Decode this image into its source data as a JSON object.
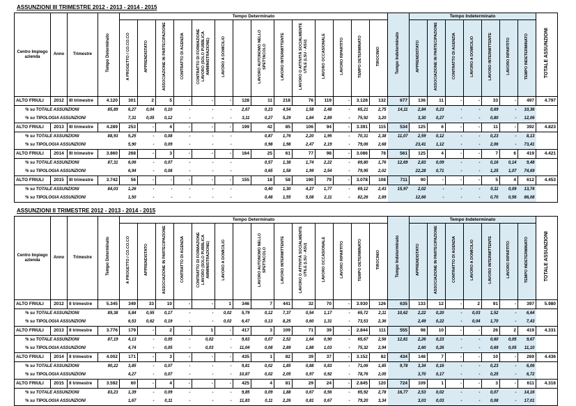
{
  "columns": {
    "id": [
      "Centro Impiego azienda",
      "Anno",
      "Trimestre"
    ],
    "tempo_det_total": "Tempo Determinato",
    "det_group": "Tempo Determinato",
    "det": [
      "A PROGETTO / CO.CO.CO",
      "APPRENDISTATO",
      "ASSOCIAZIONE IN PARTECIPAZIONE",
      "CONTRATTO DI AGENZIA",
      "CONTRATTO DI FORMAZIONE LAVORO (SOLO PUBBLICA AMMINISTRAZIONE)",
      "LAVORO A DOMICILIO",
      "",
      "LAVORO AUTONOMO NELLO SPETTACOLO",
      "LAVORO INTERMITTENTE",
      "LAVORO O ATTIVITÀ SOCIALMENTE UTILE (LSU - ASU)",
      "LAVORO OCCASIONALE",
      "LAVORO RIPARTITO",
      "TEMPO DETERMINATO",
      "TIROCINIO"
    ],
    "tempo_indet_total": "Tempo Indeterminato",
    "indet_group": "Tempo Indeterminato",
    "indet": [
      "APPRENDISTATO",
      "ASSOCIAZIONE IN PARTECIPAZIONE",
      "CONTRATTO DI AGENZIA",
      "LAVORO A DOMICILIO",
      "LAVORO INTERMITTENTE",
      "LAVORO RIPARTITO",
      "TEMPO INDETERMINATO"
    ],
    "total": "TOTALE ASSUNZIONI"
  },
  "row_labels": {
    "pct_totale": "% su TOTALE ASSUNZIONI",
    "pct_tipologia": "% su TIPOLOGIA ASSUNZIONI"
  },
  "colors": {
    "indet_bg": "#d9eaf3",
    "border": "#000000"
  },
  "tables": [
    {
      "title": "ASSUNZIONI III TRIMESTRE 2012 - 2013 - 2014 - 2015",
      "centro": "ALTO FRIULI",
      "trimestre": "III trimestre",
      "blocks": [
        {
          "anno": "2012",
          "main": {
            "td": "4.120",
            "det": [
              "301",
              "2",
              "5",
              "-",
              "-",
              "-",
              "128",
              "11",
              "218",
              "76",
              "119",
              "-",
              "3.128",
              "132"
            ],
            "ti": "677",
            "indet": [
              "136",
              "11",
              "-",
              "-",
              "33",
              "-",
              "497"
            ],
            "tot": "4.797"
          },
          "pct_totale": {
            "td": "85,89",
            "det": [
              "6,27",
              "0,04",
              "0,10",
              "-",
              "-",
              "-",
              "2,67",
              "0,23",
              "4,54",
              "1,58",
              "2,48",
              "-",
              "65,21",
              "2,75"
            ],
            "ti": "14,11",
            "indet": [
              "2,84",
              "0,23",
              "-",
              "-",
              "0,69",
              "-",
              "10,36"
            ],
            "tot": ""
          },
          "pct_tipologia": {
            "td": "",
            "det": [
              "7,31",
              "0,05",
              "0,12",
              "-",
              "-",
              "-",
              "3,11",
              "0,27",
              "5,29",
              "1,84",
              "2,89",
              "-",
              "75,92",
              "3,20"
            ],
            "ti": "",
            "indet": [
              "3,30",
              "0,27",
              "-",
              "-",
              "0,80",
              "-",
              "12,06"
            ],
            "tot": ""
          }
        },
        {
          "anno": "2013",
          "main": {
            "td": "4.289",
            "det": [
              "253",
              "-",
              "4",
              "-",
              "-",
              "-",
              "199",
              "42",
              "85",
              "106",
              "94",
              "-",
              "3.391",
              "115"
            ],
            "ti": "534",
            "indet": [
              "125",
              "6",
              "-",
              "-",
              "11",
              "-",
              "392"
            ],
            "tot": "4.823"
          },
          "pct_totale": {
            "td": "88,93",
            "det": [
              "5,25",
              "-",
              "0,08",
              "-",
              "-",
              "-",
              "",
              "0,87",
              "1,76",
              "2,20",
              "1,95",
              "-",
              "70,31",
              "2,38"
            ],
            "ti": "11,07",
            "indet": [
              "2,59",
              "0,12",
              "-",
              "-",
              "0,23",
              "-",
              "8,13"
            ],
            "tot": ""
          },
          "pct_tipologia": {
            "td": "",
            "det": [
              "5,90",
              "-",
              "0,09",
              "-",
              "-",
              "-",
              "",
              "0,98",
              "1,98",
              "2,47",
              "2,19",
              "-",
              "79,06",
              "2,68"
            ],
            "ti": "",
            "indet": [
              "23,41",
              "1,12",
              "-",
              "-",
              "2,06",
              "-",
              "73,41"
            ],
            "tot": ""
          }
        },
        {
          "anno": "2014",
          "main": {
            "td": "3.860",
            "det": [
              "268",
              "-",
              "3",
              "-",
              "-",
              "-",
              "164",
              "25",
              "61",
              "77",
              "98",
              "-",
              "3.086",
              "78"
            ],
            "ti": "561",
            "indet": [
              "125",
              "4",
              "-",
              "-",
              "7",
              "6",
              "419"
            ],
            "tot": "4.421"
          },
          "pct_totale": {
            "td": "87,31",
            "det": [
              "6,06",
              "-",
              "0,07",
              "-",
              "-",
              "-",
              "",
              "0,57",
              "1,38",
              "1,74",
              "2,22",
              "-",
              "69,80",
              "1,76"
            ],
            "ti": "12,69",
            "indet": [
              "2,83",
              "0,09",
              "-",
              "-",
              "0,16",
              "0,14",
              "9,48"
            ],
            "tot": ""
          },
          "pct_tipologia": {
            "td": "",
            "det": [
              "6,94",
              "-",
              "0,08",
              "-",
              "-",
              "-",
              "",
              "0,65",
              "1,58",
              "1,99",
              "2,54",
              "-",
              "79,95",
              "2,02"
            ],
            "ti": "",
            "indet": [
              "22,28",
              "0,71",
              "-",
              "-",
              "1,25",
              "1,07",
              "74,69"
            ],
            "tot": ""
          }
        },
        {
          "anno": "2015",
          "main": {
            "td": "3.742",
            "det": [
              "56",
              "-",
              "-",
              "-",
              "-",
              "-",
              "155",
              "18",
              "58",
              "190",
              "79",
              "-",
              "3.078",
              "108"
            ],
            "ti": "711",
            "indet": [
              "90",
              "-",
              "-",
              "-",
              "5",
              "4",
              "612"
            ],
            "tot": "4.453"
          },
          "pct_totale": {
            "td": "84,03",
            "det": [
              "1,26",
              "-",
              "-",
              "-",
              "-",
              "-",
              "",
              "0,40",
              "1,30",
              "4,27",
              "1,77",
              "-",
              "69,12",
              "2,43"
            ],
            "ti": "15,97",
            "indet": [
              "2,02",
              "-",
              "-",
              "-",
              "0,11",
              "0,09",
              "13,74"
            ],
            "tot": ""
          },
          "pct_tipologia": {
            "td": "",
            "det": [
              "1,50",
              "-",
              "-",
              "-",
              "-",
              "-",
              "",
              "0,48",
              "1,55",
              "5,08",
              "2,11",
              "-",
              "82,26",
              "2,89"
            ],
            "ti": "",
            "indet": [
              "12,66",
              "-",
              "-",
              "-",
              "0,70",
              "0,56",
              "86,08"
            ],
            "tot": ""
          }
        }
      ]
    },
    {
      "title": "ASSUNZIONI II TRIMESTRE 2012 - 2013 - 2014 - 2015",
      "centro": "ALTO FRIULI",
      "trimestre": "II trimestre",
      "blocks": [
        {
          "anno": "2012",
          "main": {
            "td": "5.345",
            "det": [
              "349",
              "33",
              "10",
              "-",
              "-",
              "1",
              "346",
              "7",
              "441",
              "32",
              "70",
              "-",
              "3.930",
              "126"
            ],
            "ti": "635",
            "indet": [
              "133",
              "12",
              "-",
              "2",
              "91",
              "-",
              "397"
            ],
            "tot": "5.980"
          },
          "pct_totale": {
            "td": "89,38",
            "det": [
              "5,84",
              "0,55",
              "0,17",
              "-",
              "-",
              "0,02",
              "5,79",
              "0,12",
              "7,37",
              "0,54",
              "1,17",
              "-",
              "65,72",
              "2,11"
            ],
            "ti": "10,62",
            "indet": [
              "2,22",
              "0,20",
              "-",
              "0,03",
              "1,52",
              "-",
              "6,64"
            ],
            "tot": ""
          },
          "pct_tipologia": {
            "td": "",
            "det": [
              "6,53",
              "0,62",
              "0,19",
              "-",
              "-",
              "0,02",
              "6,47",
              "0,13",
              "8,25",
              "0,60",
              "1,31",
              "-",
              "73,53",
              "2,36"
            ],
            "ti": "",
            "indet": [
              "2,49",
              "0,22",
              "-",
              "0,04",
              "1,70",
              "-",
              "7,43"
            ],
            "tot": ""
          }
        },
        {
          "anno": "2013",
          "main": {
            "td": "3.776",
            "det": [
              "179",
              "-",
              "2",
              "-",
              "1",
              "-",
              "417",
              "3",
              "109",
              "71",
              "39",
              "-",
              "2.844",
              "111"
            ],
            "ti": "555",
            "indet": [
              "98",
              "10",
              "-",
              "-",
              "26",
              "2",
              "419"
            ],
            "tot": "4.331"
          },
          "pct_totale": {
            "td": "87,19",
            "det": [
              "4,13",
              "-",
              "0,05",
              "-",
              "0,02",
              "-",
              "9,63",
              "0,07",
              "2,52",
              "1,64",
              "0,90",
              "-",
              "65,67",
              "2,56"
            ],
            "ti": "12,81",
            "indet": [
              "2,26",
              "0,23",
              "-",
              "-",
              "0,60",
              "0,05",
              "9,67"
            ],
            "tot": ""
          },
          "pct_tipologia": {
            "td": "",
            "det": [
              "4,74",
              "-",
              "0,05",
              "-",
              "0,03",
              "-",
              "11,04",
              "0,08",
              "2,89",
              "1,88",
              "1,03",
              "-",
              "75,32",
              "2,94"
            ],
            "ti": "",
            "indet": [
              "2,60",
              "0,26",
              "-",
              "-",
              "0,69",
              "0,05",
              "11,10"
            ],
            "tot": ""
          }
        },
        {
          "anno": "2014",
          "main": {
            "td": "4.002",
            "det": [
              "171",
              "-",
              "3",
              "-",
              "-",
              "-",
              "435",
              "1",
              "82",
              "39",
              "37",
              "-",
              "3.152",
              "82"
            ],
            "ti": "434",
            "indet": [
              "148",
              "7",
              "-",
              "-",
              "10",
              "-",
              "269"
            ],
            "tot": "4.436"
          },
          "pct_totale": {
            "td": "90,22",
            "det": [
              "3,85",
              "-",
              "0,07",
              "-",
              "-",
              "-",
              "9,81",
              "0,02",
              "1,85",
              "0,88",
              "0,83",
              "-",
              "71,06",
              "1,85"
            ],
            "ti": "9,78",
            "indet": [
              "3,34",
              "0,16",
              "-",
              "-",
              "0,23",
              "-",
              "6,06"
            ],
            "tot": ""
          },
          "pct_tipologia": {
            "td": "",
            "det": [
              "4,27",
              "-",
              "0,07",
              "-",
              "-",
              "-",
              "10,87",
              "0,02",
              "2,05",
              "0,97",
              "0,92",
              "-",
              "78,76",
              "2,05"
            ],
            "ti": "",
            "indet": [
              "3,70",
              "0,17",
              "-",
              "-",
              "0,25",
              "-",
              "6,72"
            ],
            "tot": ""
          }
        },
        {
          "anno": "2015",
          "main": {
            "td": "3.592",
            "det": [
              "60",
              "-",
              "4",
              "-",
              "-",
              "-",
              "425",
              "4",
              "81",
              "29",
              "24",
              "-",
              "2.845",
              "120"
            ],
            "ti": "724",
            "indet": [
              "109",
              "1",
              "-",
              "-",
              "3",
              "-",
              "611"
            ],
            "tot": "4.316"
          },
          "pct_totale": {
            "td": "83,23",
            "det": [
              "1,39",
              "-",
              "0,09",
              "-",
              "-",
              "-",
              "9,85",
              "0,09",
              "1,88",
              "0,67",
              "0,56",
              "-",
              "65,92",
              "2,78"
            ],
            "ti": "16,77",
            "indet": [
              "2,53",
              "0,02",
              "-",
              "-",
              "0,07",
              "-",
              "14,16"
            ],
            "tot": ""
          },
          "pct_tipologia": {
            "td": "",
            "det": [
              "1,67",
              "-",
              "0,11",
              "-",
              "-",
              "-",
              "11,83",
              "0,11",
              "2,26",
              "0,81",
              "0,67",
              "-",
              "79,20",
              "3,34"
            ],
            "ti": "",
            "indet": [
              "3,03",
              "0,03",
              "-",
              "-",
              "0,08",
              "-",
              "17,01"
            ],
            "tot": ""
          }
        }
      ]
    }
  ]
}
